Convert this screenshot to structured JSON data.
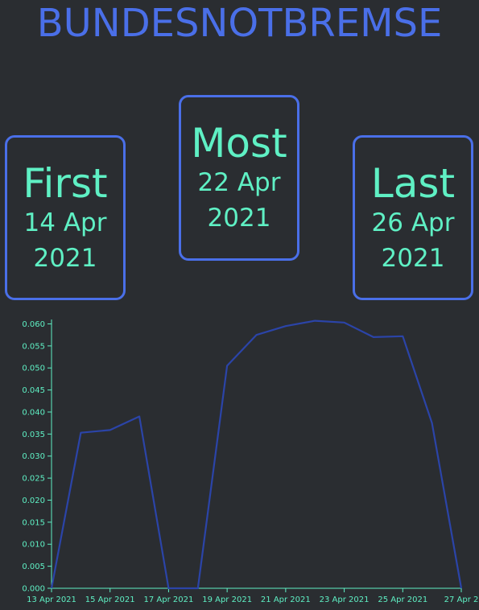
{
  "title": "BUNDESNOTBREMSE",
  "cards": {
    "first": {
      "label": "First",
      "day": "14 Apr",
      "year": "2021"
    },
    "most": {
      "label": "Most",
      "day": "22 Apr",
      "year": "2021"
    },
    "last": {
      "label": "Last",
      "day": "26 Apr",
      "year": "2021"
    }
  },
  "colors": {
    "background": "#2a2d31",
    "accent": "#4a6fe8",
    "text": "#5ff0c4",
    "line": "#2b44a8",
    "axis": "#5ff0c4"
  },
  "chart_data": {
    "type": "line",
    "x": [
      "2021-04-13",
      "2021-04-14",
      "2021-04-15",
      "2021-04-16",
      "2021-04-17",
      "2021-04-18",
      "2021-04-19",
      "2021-04-20",
      "2021-04-21",
      "2021-04-22",
      "2021-04-23",
      "2021-04-24",
      "2021-04-25",
      "2021-04-26",
      "2021-04-27"
    ],
    "series": [
      {
        "values": [
          0,
          0.0353,
          0.0359,
          0.039,
          0,
          0,
          0.0505,
          0.0575,
          0.0595,
          0.0607,
          0.0603,
          0.057,
          0.0572,
          0.0375,
          0
        ]
      }
    ],
    "xticks": [
      "13 Apr 2021",
      "15 Apr 2021",
      "17 Apr 2021",
      "19 Apr 2021",
      "21 Apr 2021",
      "23 Apr 2021",
      "25 Apr 2021",
      "27 Apr 2"
    ],
    "yticks": [
      "0.000",
      "0.005",
      "0.010",
      "0.015",
      "0.020",
      "0.025",
      "0.030",
      "0.035",
      "0.040",
      "0.045",
      "0.050",
      "0.055",
      "0.060"
    ],
    "ylim": [
      0,
      0.061
    ],
    "grid": false
  }
}
